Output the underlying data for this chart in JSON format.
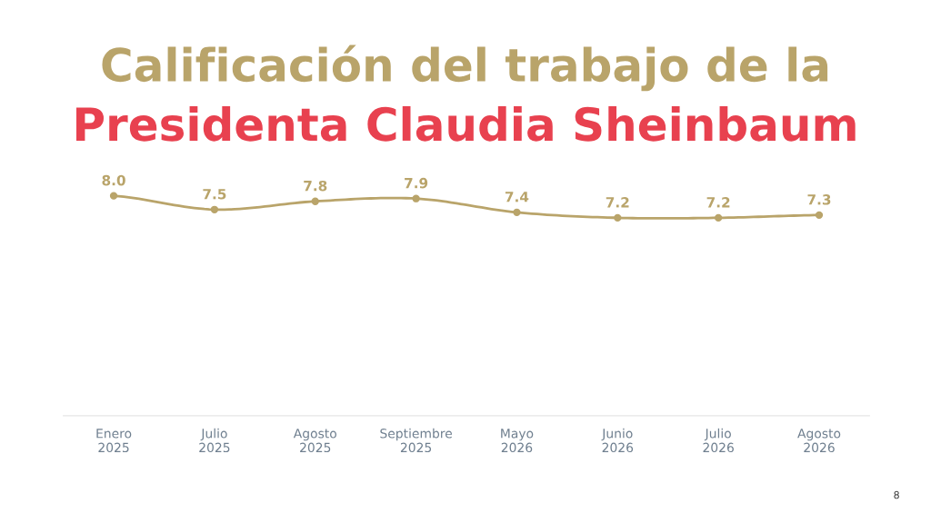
{
  "chart_data": {
    "type": "line",
    "title": "Calificación del trabajo de la",
    "subtitle": "Presidenta Claudia Sheinbaum",
    "categories": [
      "Enero\n2025",
      "Julio\n2025",
      "Agosto\n2025",
      "Septiembre\n2025",
      "Mayo\n2026",
      "Junio\n2026",
      "Julio\n2026",
      "Agosto\n2026"
    ],
    "series": [
      {
        "color": "#b9a46a",
        "values": [
          8.0,
          7.5,
          7.8,
          7.9,
          7.4,
          7.2,
          7.2,
          7.3
        ],
        "value_labels": [
          "8.0",
          "7.5",
          "7.8",
          "7.9",
          "7.4",
          "7.2",
          "7.2",
          "7.3"
        ]
      }
    ],
    "tick_labels": "x",
    "marker": "circle",
    "line_style": "solid",
    "annotations": [
      "8"
    ]
  }
}
